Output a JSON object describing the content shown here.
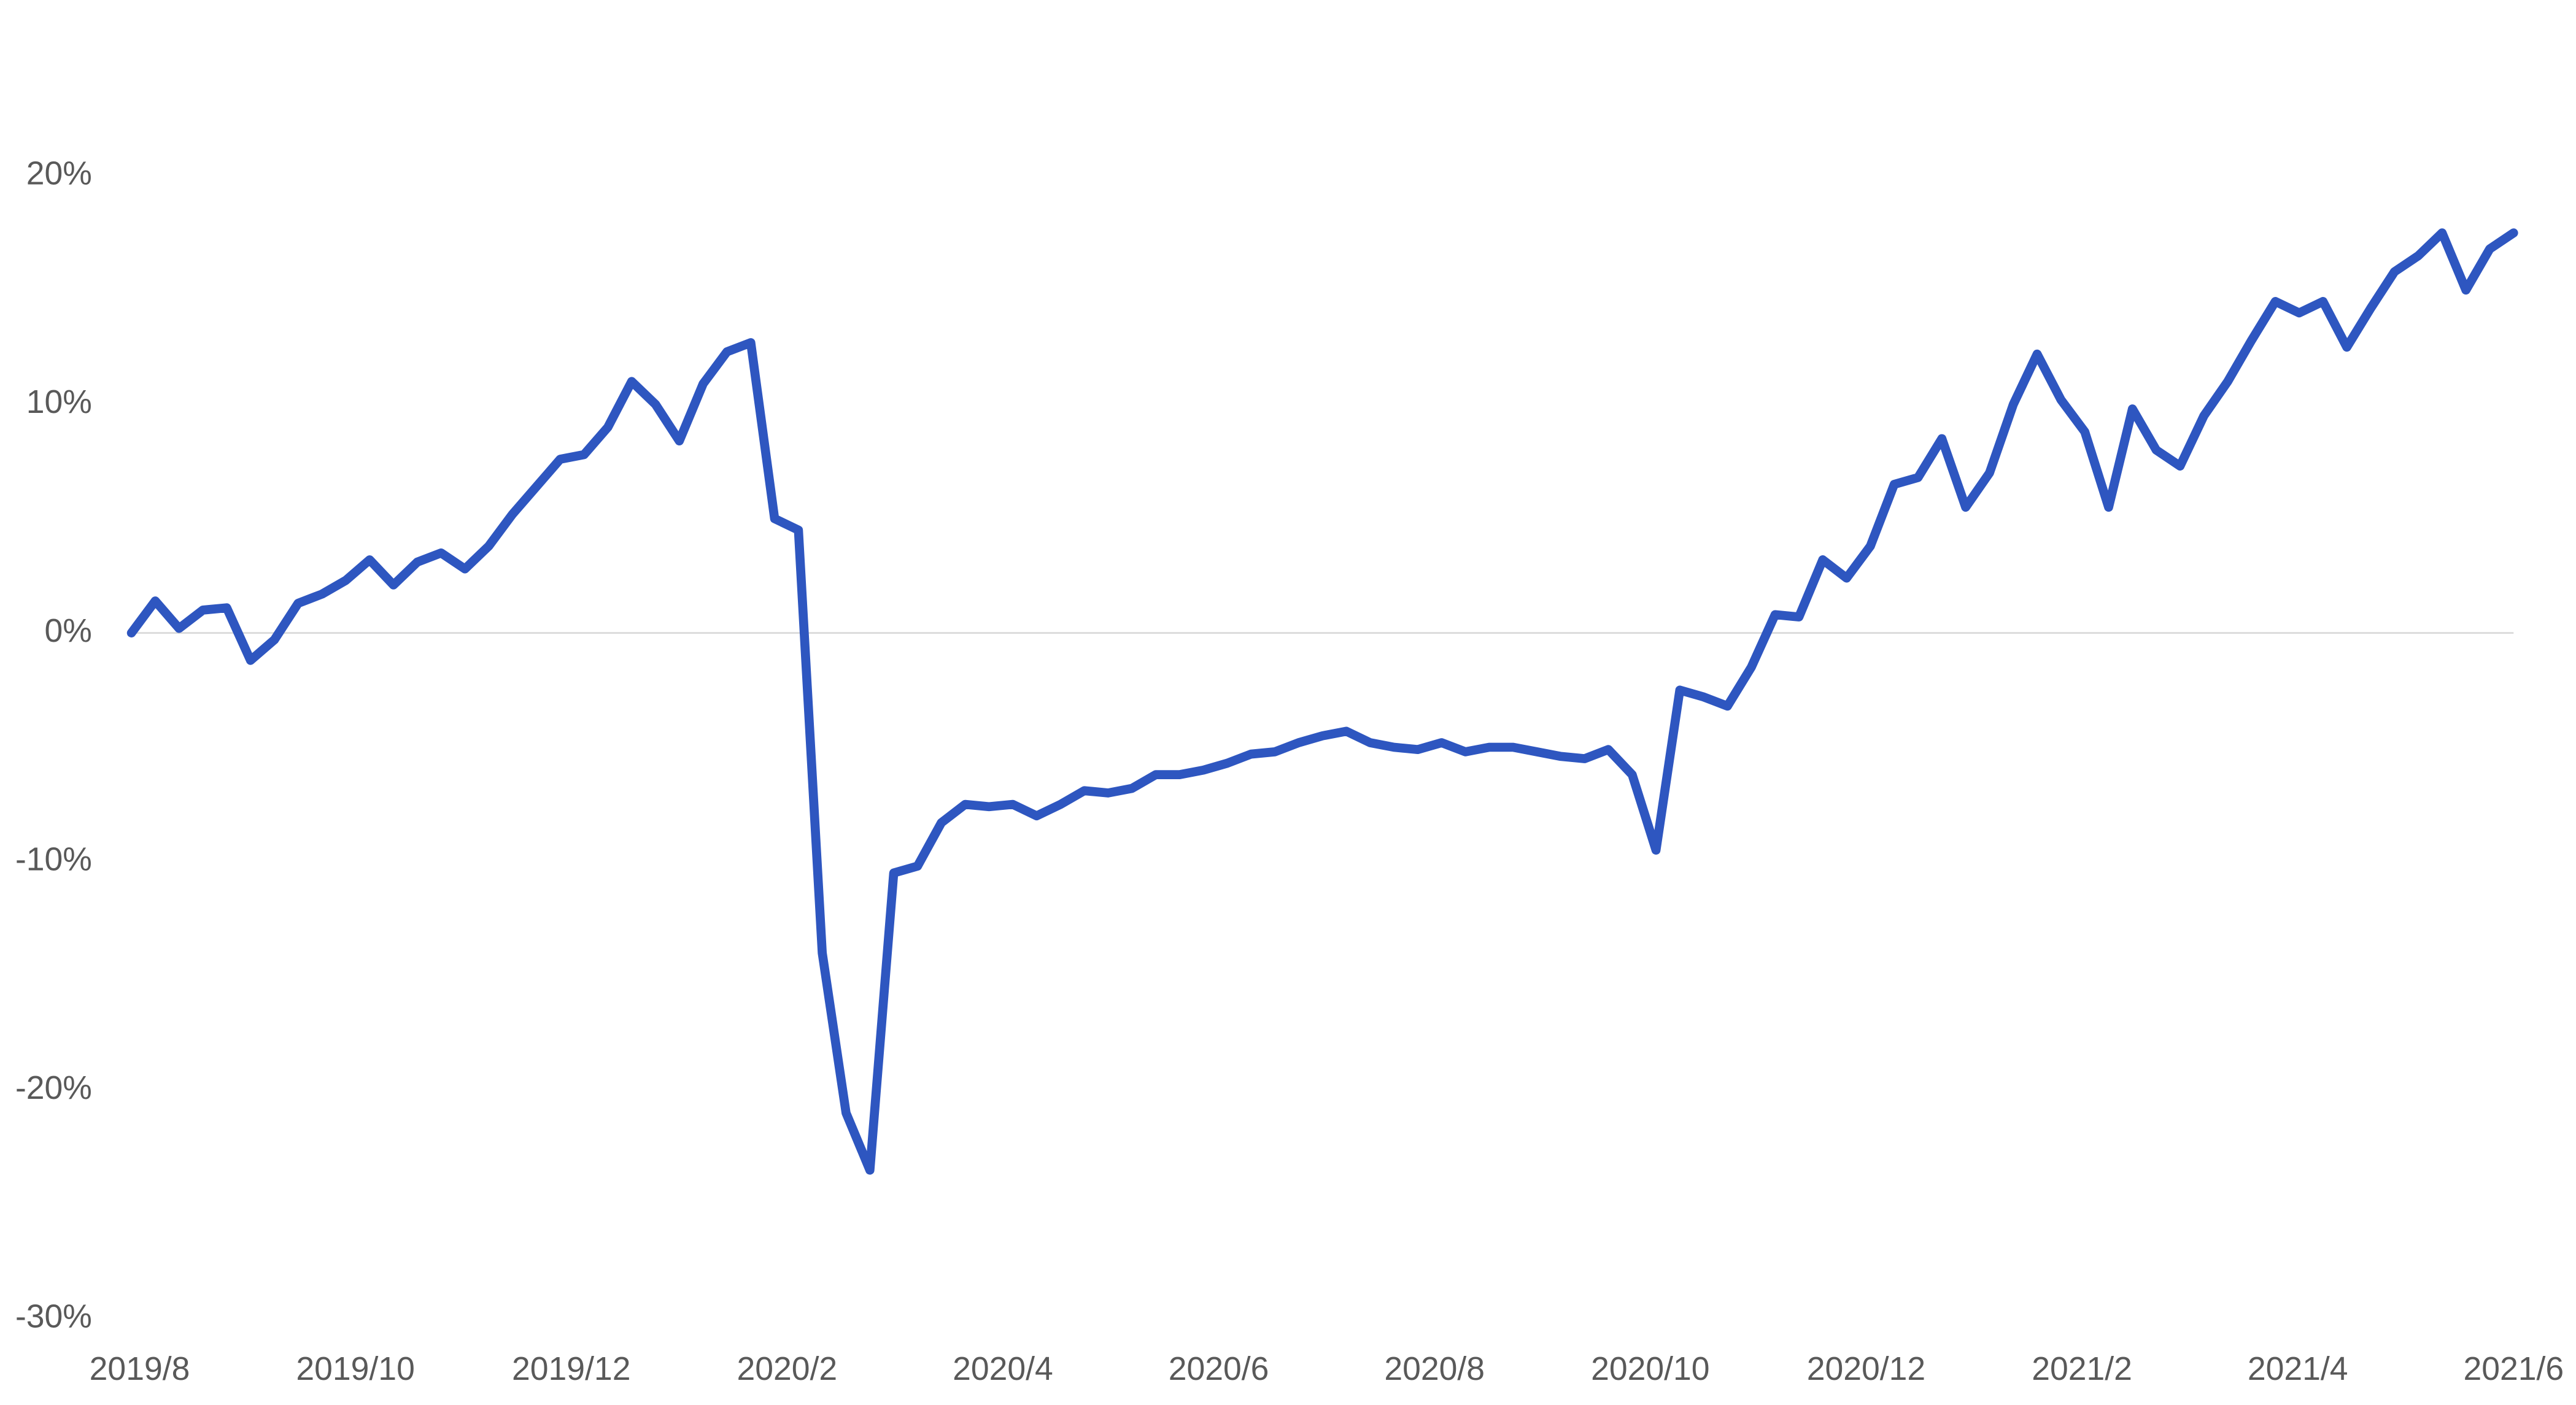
{
  "chart_data": {
    "type": "line",
    "x_labels": [
      "2019/8",
      "2019/10",
      "2019/12",
      "2020/2",
      "2020/4",
      "2020/6",
      "2020/8",
      "2020/10",
      "2020/12",
      "2021/2",
      "2021/4",
      "2021/6"
    ],
    "series": [
      {
        "color": "#2e56c0",
        "values": [
          0,
          1.4,
          0.2,
          1.0,
          1.1,
          -1.2,
          -0.3,
          1.3,
          1.7,
          2.3,
          3.2,
          2.1,
          3.1,
          3.5,
          2.8,
          3.8,
          5.2,
          6.4,
          7.6,
          7.8,
          9.0,
          11.0,
          10.0,
          8.4,
          10.9,
          12.3,
          12.7,
          5.0,
          4.5,
          -14,
          -21,
          -23.5,
          -10.5,
          -10.2,
          -8.3,
          -7.5,
          -7.6,
          -7.5,
          -8.0,
          -7.5,
          -6.9,
          -7.0,
          -6.8,
          -6.2,
          -6.2,
          -6.0,
          -5.7,
          -5.3,
          -5.2,
          -4.8,
          -4.5,
          -4.3,
          -4.8,
          -5.0,
          -5.1,
          -4.8,
          -5.2,
          -5.0,
          -5.0,
          -5.2,
          -5.4,
          -5.5,
          -5.1,
          -6.2,
          -9.5,
          -2.5,
          -2.8,
          -3.2,
          -1.5,
          0.8,
          0.7,
          3.2,
          2.4,
          3.8,
          6.5,
          6.8,
          8.5,
          5.5,
          7.0,
          10.0,
          12.2,
          10.2,
          8.8,
          5.5,
          9.8,
          8.0,
          7.3,
          9.5,
          11.0,
          12.8,
          14.5,
          14.0,
          14.5,
          12.5,
          14.2,
          15.8,
          16.5,
          17.5,
          15.0,
          16.8,
          17.5
        ]
      }
    ],
    "ylim": [
      -30,
      20
    ],
    "yticks": [
      {
        "value": -30,
        "label": "-30%"
      },
      {
        "value": -20,
        "label": "-20%"
      },
      {
        "value": -10,
        "label": "-10%"
      },
      {
        "value": 0,
        "label": "0%"
      },
      {
        "value": 10,
        "label": "10%"
      },
      {
        "value": 20,
        "label": "20%"
      }
    ],
    "zero_line": true
  }
}
